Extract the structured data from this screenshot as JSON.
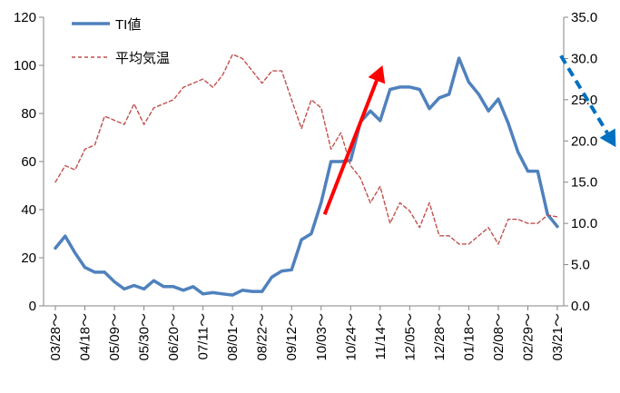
{
  "chart_data": {
    "type": "line",
    "x_tick_labels": [
      "03/28",
      "04/18",
      "05/09",
      "05/30",
      "06/20",
      "07/11",
      "08/01",
      "08/22",
      "09/12",
      "10/03",
      "10/24",
      "11/14",
      "12/05",
      "12/28",
      "01/18",
      "02/08",
      "02/29",
      "03/21"
    ],
    "y_left_ticks": [
      "0",
      "20",
      "40",
      "60",
      "80",
      "100",
      "120"
    ],
    "y_right_ticks": [
      "0.0",
      "5.0",
      "10.0",
      "15.0",
      "20.0",
      "25.0",
      "30.0",
      "35.0"
    ],
    "ylim_left": [
      0,
      120
    ],
    "ylim_right": [
      0,
      35
    ],
    "tick_suffix": "～",
    "grid": false,
    "legend_position": "top-left",
    "series": [
      {
        "name": "TI値",
        "axis": "left",
        "color": "#4f81bd",
        "style": "solid",
        "values": [
          24,
          29,
          22,
          16,
          14,
          14,
          10,
          7,
          8.5,
          7,
          10.5,
          8,
          8,
          6.5,
          8,
          5,
          5.5,
          5,
          4.5,
          6.5,
          6,
          6,
          12,
          14.5,
          15,
          27.5,
          30,
          43,
          60,
          60,
          60.5,
          76.5,
          81,
          77,
          90,
          91,
          91,
          90,
          82,
          86.5,
          88,
          103,
          93,
          88,
          81,
          86,
          76,
          64,
          56,
          56,
          38,
          33
        ]
      },
      {
        "name": "平均気温",
        "axis": "right",
        "color": "#c0504d",
        "style": "dashed",
        "values": [
          15,
          17,
          16.5,
          19,
          19.5,
          23,
          22.5,
          22,
          24.5,
          22,
          24,
          24.5,
          25,
          26.5,
          27,
          27.5,
          26.5,
          28,
          30.5,
          30,
          28.5,
          27,
          28.5,
          28.5,
          25,
          21.5,
          25,
          24,
          19,
          21,
          17,
          15.5,
          12.5,
          14.5,
          10,
          12.5,
          11.5,
          9.5,
          12.5,
          8.5,
          8.5,
          7.5,
          7.5,
          8.5,
          9.5,
          7.5,
          10.5,
          10.5,
          10,
          10,
          11,
          10.8
        ]
      }
    ],
    "annotations": [
      {
        "type": "arrow",
        "style": "solid",
        "color": "#ff0000",
        "from": [
          9.12,
          38
        ],
        "to": [
          11.08,
          100
        ]
      },
      {
        "type": "arrow",
        "style": "dashed",
        "color": "#0070c0",
        "from": [
          17.12,
          104
        ],
        "to": [
          18.98,
          66
        ]
      }
    ]
  }
}
